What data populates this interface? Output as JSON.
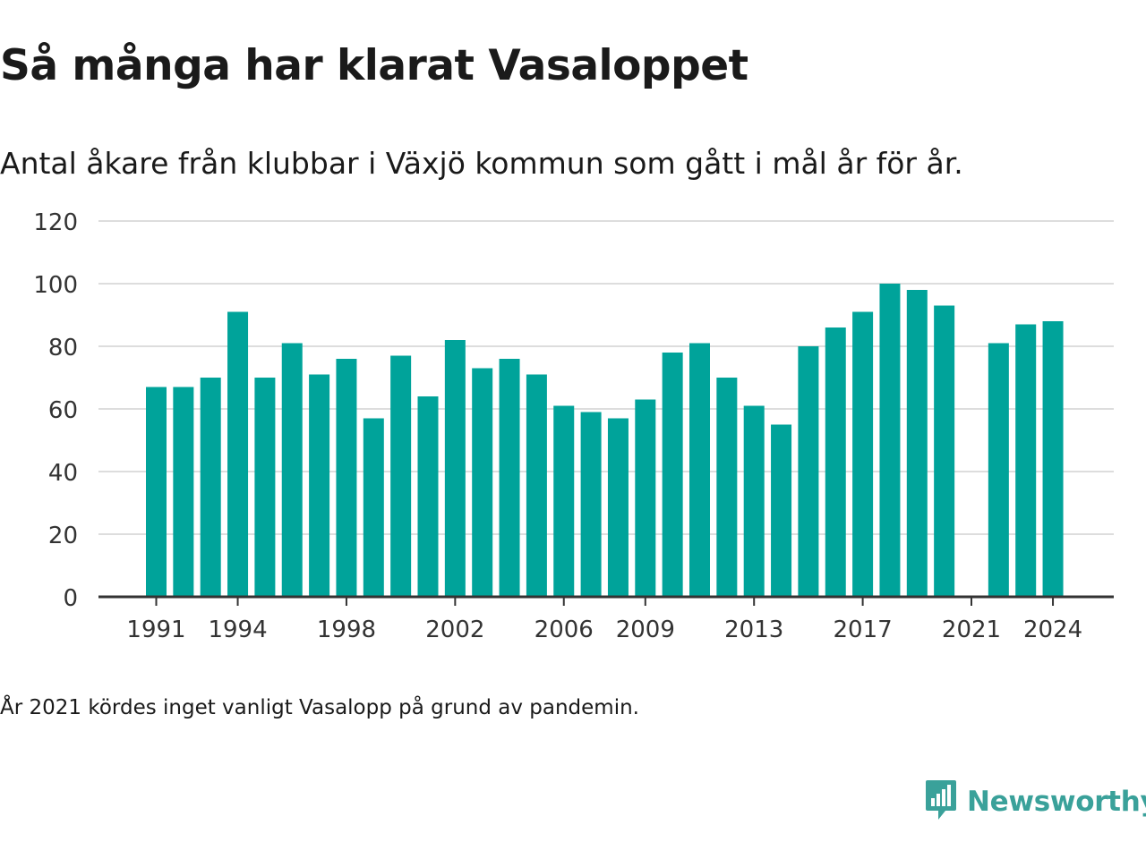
{
  "header": {
    "title": "Så många har klarat Vasaloppet",
    "subtitle": "Antal åkare från klubbar i Växjö kommun som gått i mål år för år."
  },
  "footer": {
    "note": "År 2021 kördes inget vanligt Vasalopp på grund av pandemin.",
    "brand": "Newsworthy",
    "brand_icon": "bar-chart-speech-bubble-icon"
  },
  "colors": {
    "bar": "#00a39a",
    "grid": "#dddddd",
    "axis": "#333333",
    "brand": "#3aa19a"
  },
  "chart_data": {
    "type": "bar",
    "categories": [
      "1991",
      "1992",
      "1993",
      "1994",
      "1995",
      "1996",
      "1997",
      "1998",
      "1999",
      "2000",
      "2001",
      "2002",
      "2003",
      "2004",
      "2005",
      "2006",
      "2007",
      "2008",
      "2009",
      "2010",
      "2011",
      "2012",
      "2013",
      "2014",
      "2015",
      "2016",
      "2017",
      "2018",
      "2019",
      "2020",
      "2021",
      "2022",
      "2023",
      "2024"
    ],
    "values": [
      67,
      67,
      70,
      91,
      70,
      81,
      71,
      76,
      57,
      77,
      64,
      82,
      73,
      76,
      71,
      61,
      59,
      57,
      63,
      78,
      81,
      70,
      61,
      55,
      80,
      86,
      91,
      100,
      98,
      93,
      null,
      81,
      87,
      88
    ],
    "x_tick_labels": [
      "1991",
      "1994",
      "1998",
      "2002",
      "2006",
      "2009",
      "2013",
      "2017",
      "2021",
      "2024"
    ],
    "y_ticks": [
      0,
      20,
      40,
      60,
      80,
      100,
      120
    ],
    "ylim": [
      0,
      120
    ],
    "title": "Så många har klarat Vasaloppet",
    "subtitle": "Antal åkare från klubbar i Växjö kommun som gått i mål år för år.",
    "xlabel": "",
    "ylabel": "",
    "grid": true,
    "legend": "none"
  }
}
